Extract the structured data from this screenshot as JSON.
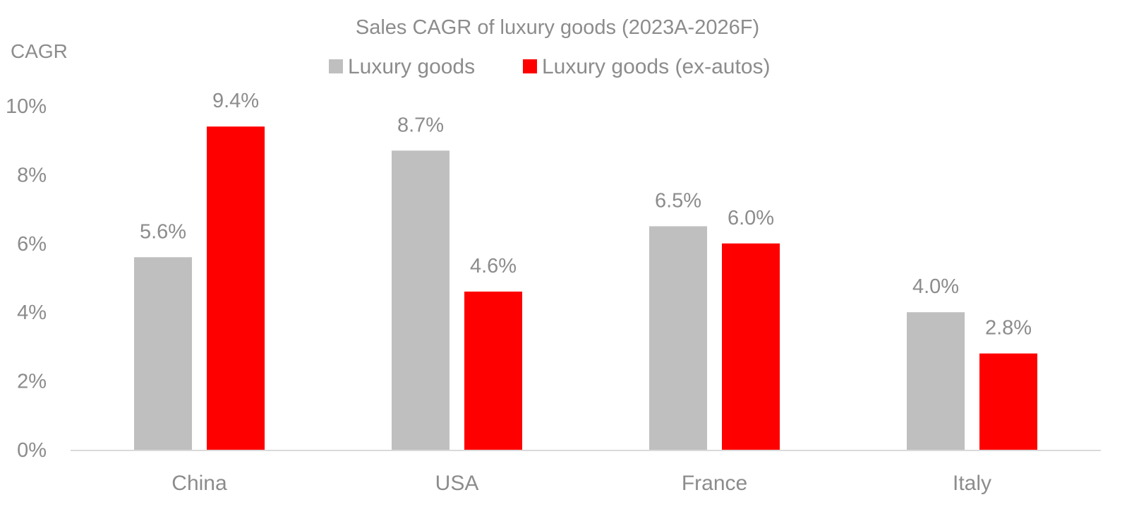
{
  "chart_data": {
    "type": "bar",
    "title": "Sales CAGR of luxury goods (2023A-2026F)",
    "xlabel": "",
    "ylabel": "CAGR",
    "categories": [
      "China",
      "USA",
      "France",
      "Italy"
    ],
    "series": [
      {
        "name": "Luxury goods",
        "values": [
          5.6,
          8.7,
          6.5,
          4.0
        ],
        "labels": [
          "5.6%",
          "8.7%",
          "6.5%",
          "4.0%"
        ],
        "color": "#bfbfbf"
      },
      {
        "name": "Luxury goods (ex-autos)",
        "values": [
          9.4,
          4.6,
          6.0,
          2.8
        ],
        "labels": [
          "9.4%",
          "4.6%",
          "6.0%",
          "2.8%"
        ],
        "color": "#ff0000"
      }
    ],
    "ylim": [
      0,
      10
    ],
    "yticks": [
      0,
      2,
      4,
      6,
      8,
      10
    ],
    "ytick_labels": [
      "0%",
      "2%",
      "4%",
      "6%",
      "8%",
      "10%"
    ],
    "grid": false,
    "legend_position": "top-center",
    "axis_color": "#d9d9d9",
    "text_color": "#8c8c8c"
  }
}
